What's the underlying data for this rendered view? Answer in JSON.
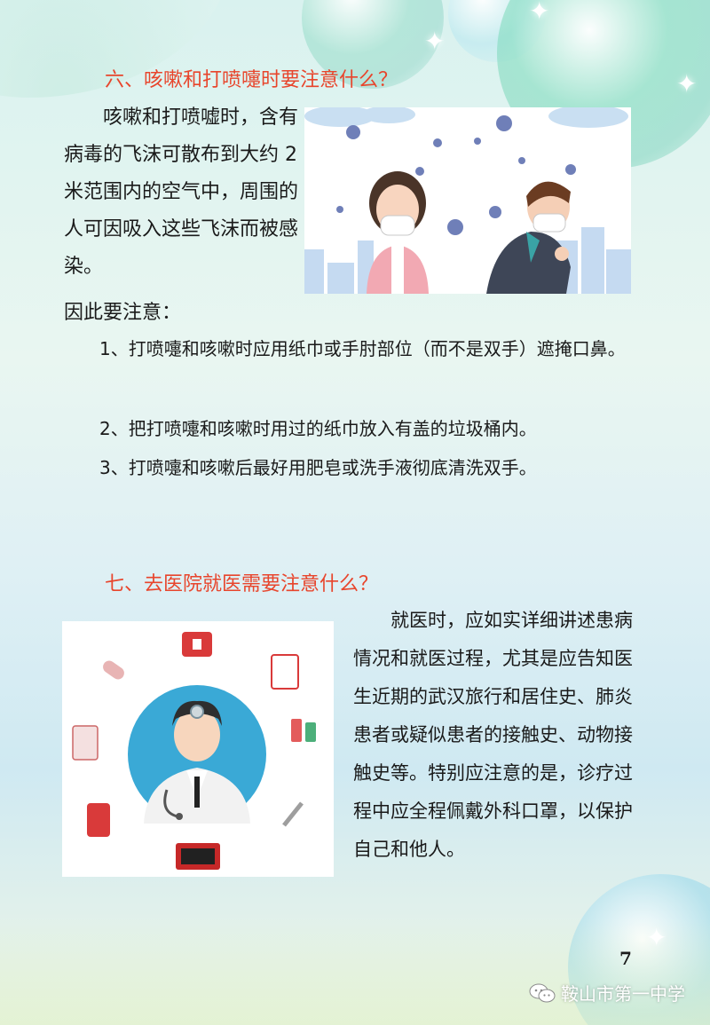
{
  "section6": {
    "heading": "六、咳嗽和打喷嚏时要注意什么？",
    "intro_lines": [
      "咳嗽和打喷嘘时，",
      "含有病毒的飞沫可散布",
      "到大约 2 米范围内的空",
      "气中，周围的人可因吸",
      "入这些飞沫而被感染。"
    ],
    "intro_tail": "因此要注意：",
    "items": [
      "1、打喷嚏和咳嗽时应用纸巾或手肘部位（而不是双手）遮掩口鼻。",
      "2、把打喷嚏和咳嗽时用过的纸巾放入有盖的垃圾桶内。",
      "3、打喷嚏和咳嗽后最好用肥皂或洗手液彻底清洗双手。"
    ]
  },
  "section7": {
    "heading": "七、去医院就医需要注意什么？",
    "body": "就医时，应如实详细讲述患病情况和就医过程，尤其是应告知医生近期的武汉旅行和居住史、肺炎患者或疑似患者的接触史、动物接触史等。特别应注意的是，诊疗过程中应全程佩戴外科口罩，以保护自己和他人。"
  },
  "page_number": "7",
  "footer": {
    "source": "鞍山市第一中学"
  },
  "colors": {
    "heading": "#e8452c",
    "doctor_circle": "#3aa9d6"
  }
}
